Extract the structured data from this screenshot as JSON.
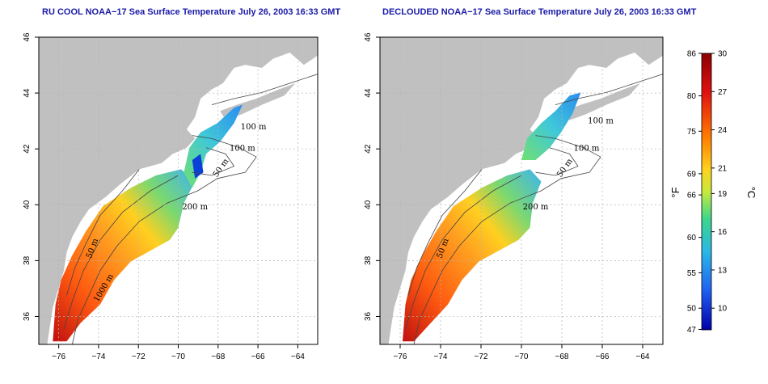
{
  "maps": [
    {
      "id": "left",
      "title": "RU COOL NOAA−17 Sea Surface Temperature July 26, 2003 16:33 GMT",
      "contour_labels": [
        "100 m",
        "100 m",
        "50 m",
        "200 m",
        "50 m",
        "1000 m"
      ]
    },
    {
      "id": "right",
      "title": "DECLOUDED NOAA−17 Sea Surface Temperature July 26, 2003 16:33 GMT",
      "contour_labels": [
        "100 m",
        "100 m",
        "50 m",
        "200 m",
        "50 m"
      ]
    }
  ],
  "axes": {
    "x_ticks": [
      "−76",
      "−74",
      "−72",
      "−70",
      "−68",
      "−66",
      "−64"
    ],
    "y_ticks": [
      "36",
      "38",
      "40",
      "42",
      "44",
      "46"
    ],
    "x_range": [
      -77,
      -63
    ],
    "y_range": [
      35,
      46
    ]
  },
  "colorbar": {
    "fahrenheit_label": "°F",
    "celsius_label": "°C",
    "fahrenheit_ticks": [
      "86",
      "80",
      "75",
      "69",
      "66",
      "60",
      "55",
      "50",
      "47"
    ],
    "celsius_ticks": [
      "30",
      "27",
      "24",
      "21",
      "19",
      "16",
      "13",
      "10"
    ],
    "fahrenheit_values": [
      86,
      80,
      75,
      69,
      66,
      60,
      55,
      50,
      47
    ],
    "celsius_values": [
      30,
      27,
      24,
      21,
      19,
      16,
      13,
      10
    ],
    "range_c": [
      8.3,
      30
    ],
    "colors": [
      "#8b0000",
      "#e01010",
      "#ff7a00",
      "#ffd21e",
      "#c8ea3c",
      "#3cd68c",
      "#2ab7e8",
      "#1f5ff0",
      "#0000a8"
    ]
  },
  "colors": {
    "land": "#c0c0c0",
    "title": "#1a1aa8",
    "grid": "#b4b4b4",
    "contour": "#444444"
  }
}
